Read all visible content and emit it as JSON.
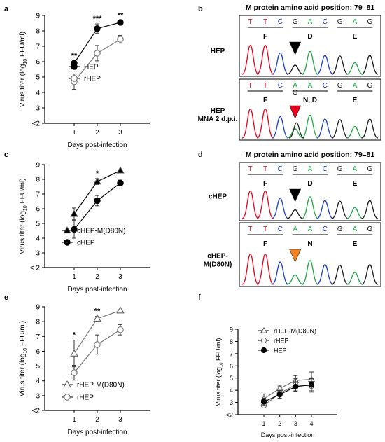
{
  "panel_labels": {
    "a": "a",
    "b": "b",
    "c": "c",
    "d": "d",
    "e": "e",
    "f": "f"
  },
  "chart_data": [
    {
      "panel": "a",
      "type": "line",
      "xlabel": "Days post-infection",
      "ylabel": "Virus titer (log10 FFU/ml)",
      "ylabel_parts": [
        "Virus titer (log",
        "10",
        " FFU/ml)"
      ],
      "ylim": [
        2,
        9
      ],
      "yticks": [
        "<2",
        "3",
        "4",
        "5",
        "6",
        "7",
        "8",
        "9"
      ],
      "x": [
        1,
        2,
        3
      ],
      "xticks": [
        "1",
        "2",
        "3"
      ],
      "series": [
        {
          "name": "HEP",
          "marker": "filled-circle",
          "values": [
            5.9,
            8.15,
            8.55
          ],
          "errors": [
            0.15,
            0.3,
            0.1
          ]
        },
        {
          "name": "rHEP",
          "marker": "open-circle",
          "values": [
            4.7,
            6.55,
            7.45
          ],
          "errors": [
            0.5,
            0.5,
            0.25
          ]
        }
      ],
      "significance": [
        {
          "x": 1,
          "text": "**"
        },
        {
          "x": 2,
          "text": "***"
        },
        {
          "x": 3,
          "text": "**"
        }
      ],
      "legend": "right"
    },
    {
      "panel": "c",
      "type": "line",
      "xlabel": "Days post-infection",
      "ylabel": "Virus titer (log10 FFU/ml)",
      "ylabel_parts": [
        "Virus titer (log",
        "10",
        " FFU/ml)"
      ],
      "ylim": [
        2,
        9
      ],
      "yticks": [
        "< 2",
        "3",
        "4",
        "5",
        "6",
        "7",
        "8",
        "9"
      ],
      "x": [
        1,
        2,
        3
      ],
      "xticks": [
        "1",
        "2",
        "3"
      ],
      "series": [
        {
          "name": "cHEP-M(D80N)",
          "marker": "filled-triangle",
          "values": [
            5.65,
            7.85,
            8.6
          ],
          "errors": [
            0.4,
            0.2,
            0.05
          ]
        },
        {
          "name": "cHEP",
          "marker": "filled-circle",
          "values": [
            4.6,
            6.55,
            7.75
          ],
          "errors": [
            0.6,
            0.35,
            0.2
          ]
        }
      ],
      "significance": [
        {
          "x": 2,
          "text": "*"
        }
      ],
      "legend": "right"
    },
    {
      "panel": "e",
      "type": "line",
      "xlabel": "Days post-infection",
      "ylabel": "Virus titer (log10 FFU/ml)",
      "ylabel_parts": [
        "Virus titer (log",
        "10",
        " FFU/ml)"
      ],
      "ylim": [
        2,
        9
      ],
      "yticks": [
        "<2",
        "3",
        "4",
        "5",
        "6",
        "7",
        "8",
        "9"
      ],
      "x": [
        1,
        2,
        3
      ],
      "xticks": [
        "1",
        "2",
        "3"
      ],
      "series": [
        {
          "name": "rHEP-M(D80N)",
          "marker": "open-triangle",
          "values": [
            5.85,
            8.2,
            8.75
          ],
          "errors": [
            0.9,
            0.15,
            0.05
          ]
        },
        {
          "name": "rHEP",
          "marker": "open-circle",
          "values": [
            4.55,
            6.45,
            7.45
          ],
          "errors": [
            0.5,
            0.65,
            0.35
          ]
        }
      ],
      "significance": [
        {
          "x": 1,
          "text": "*"
        },
        {
          "x": 2,
          "text": "**"
        }
      ],
      "legend": "right"
    },
    {
      "panel": "f",
      "type": "line",
      "xlabel": "Days post-infection",
      "ylabel": "Virus titer (log10 FFU/ml)",
      "ylabel_parts": [
        "Virus titer (log",
        "10",
        " FFU/ml)"
      ],
      "ylim": [
        2,
        9
      ],
      "yticks": [
        "<2",
        "3",
        "4",
        "5",
        "6",
        "7",
        "8",
        "9"
      ],
      "x": [
        1,
        2,
        3,
        4
      ],
      "xticks": [
        "1",
        "2",
        "3",
        "4"
      ],
      "series": [
        {
          "name": "rHEP-M(D80N)",
          "marker": "open-triangle",
          "values": [
            3.3,
            4.15,
            4.8,
            4.9
          ],
          "errors": [
            0.4,
            0.2,
            0.4,
            0.6
          ]
        },
        {
          "name": "rHEP",
          "marker": "open-circle",
          "values": [
            2.75,
            3.75,
            4.45,
            4.35
          ],
          "errors": [
            0.2,
            0.25,
            0.5,
            0.5
          ]
        },
        {
          "name": "HEP",
          "marker": "filled-circle",
          "values": [
            3.05,
            3.65,
            4.3,
            4.45
          ],
          "errors": [
            0.3,
            0.3,
            0.4,
            0.5
          ]
        }
      ],
      "significance": [],
      "legend": "top"
    }
  ],
  "chromatograms": [
    {
      "panel": "b",
      "title": "M protein amino acid position: 79–81",
      "tracks": [
        {
          "label": [
            "HEP"
          ],
          "bases": [
            "T",
            "T",
            "C",
            "G",
            "A",
            "C",
            "G",
            "A",
            "G"
          ],
          "extra_base": "",
          "codons": [
            "F",
            "D",
            "E"
          ],
          "arrow_color": "#000000"
        },
        {
          "label": [
            "HEP",
            "MNA 2 d.p.i."
          ],
          "bases": [
            "T",
            "T",
            "C",
            "A",
            "A",
            "C",
            "G",
            "A",
            "G"
          ],
          "extra_base": "G",
          "codons": [
            "F",
            "N, D",
            "E"
          ],
          "arrow_color": "#e8001c"
        }
      ]
    },
    {
      "panel": "d",
      "title": "M protein amino acid position: 79–81",
      "tracks": [
        {
          "label": [
            "cHEP"
          ],
          "bases": [
            "T",
            "T",
            "C",
            "G",
            "A",
            "C",
            "G",
            "A",
            "G"
          ],
          "extra_base": "",
          "codons": [
            "F",
            "D",
            "E"
          ],
          "arrow_color": "#000000"
        },
        {
          "label": [
            "cHEP-",
            "M(D80N)"
          ],
          "bases": [
            "T",
            "T",
            "C",
            "A",
            "A",
            "C",
            "G",
            "A",
            "G"
          ],
          "extra_base": "",
          "codons": [
            "F",
            "N",
            "E"
          ],
          "arrow_color": "#f5821f"
        }
      ]
    }
  ],
  "base_colors": {
    "T": "#e8001c",
    "C": "#1a3fd8",
    "G": "#1a1a1a",
    "A": "#1fa845"
  }
}
